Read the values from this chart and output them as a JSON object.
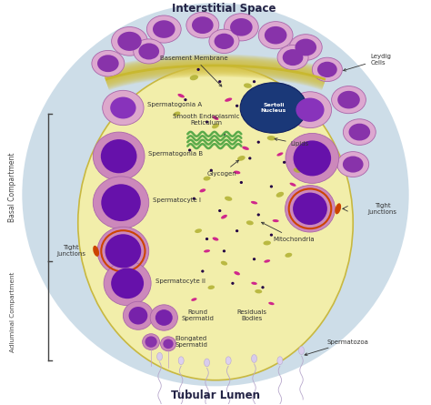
{
  "fig_bg": "#ffffff",
  "outer_bg": "#c8dce8",
  "main_cell_color": "#f0eda0",
  "main_cell_edge": "#c8b840",
  "basement_color": "#d8c840",
  "sertoli_nucleus_color": "#1a3878",
  "smooth_er_color": "#5aaa4a",
  "labels": {
    "interstitial_space": "Interstitial Space",
    "basement_membrane": "Basement Membrane",
    "leydig_cells": "Leydig\nCells",
    "spermatogonia_a": "Spermatogonia A",
    "spermatogonia_b": "Spermatogonia B",
    "smooth_er": "Smooth Endoplasmic\nReticulum",
    "sertoli_nucleus": "Sertoli\nNucleus",
    "lipids": "Lipids",
    "glycogen": "Glycogen",
    "spermatocyte_i": "Spermatocyte I",
    "tight_junctions_l": "Tight\nJunctions",
    "tight_junctions_r": "Tight\nJunctions",
    "spermatocyte_ii": "Spermatocyte II",
    "mitochondria": "Mitochondria",
    "round_spermatid": "Round\nSpermatid",
    "elongated_spermatid": "Elongated\nSpermatid",
    "residuals_bodies": "Residuals\nBodies",
    "spermatozoa": "Spermatozoa",
    "basal_compartment": "Basal Compartment",
    "adluminal_compartment": "Adluminal Compartment",
    "tubular_lumen": "Tubular Lumen"
  },
  "cell_outer": "#dda0cc",
  "cell_inner": "#7722aa",
  "cell_outer2": "#cc88bb",
  "cell_inner2": "#6611aa",
  "olive": "#b0b030",
  "magenta": "#cc1188",
  "dark_dot": "#220044",
  "tj_color": "#cc4400",
  "sperm_color": "#ddd0f0",
  "label_color": "#333333"
}
